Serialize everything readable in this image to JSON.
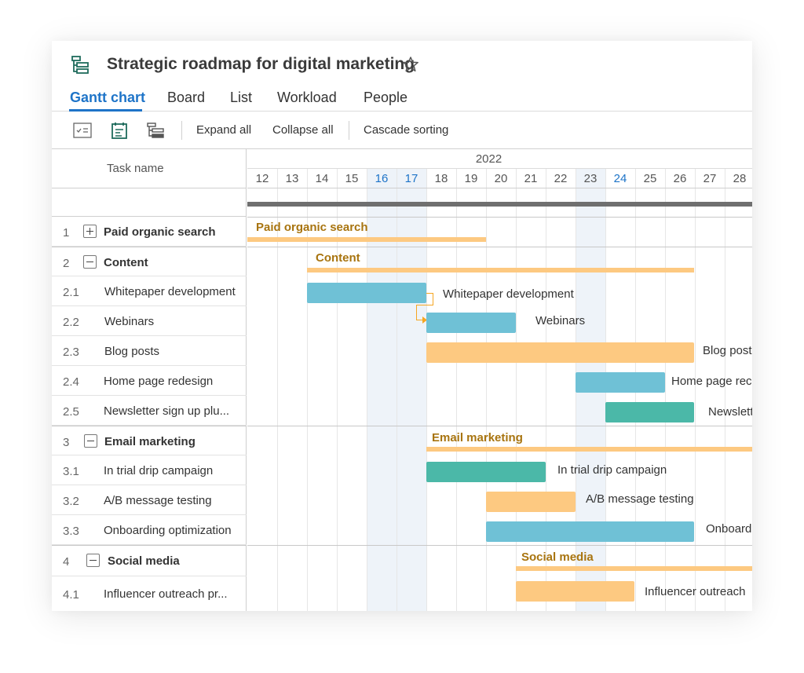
{
  "header": {
    "title": "Strategic roadmap for digital marketing",
    "app_icon": "gantt-app-icon",
    "favorite_icon": "star-outline-icon"
  },
  "tabs": [
    {
      "label": "Gantt chart",
      "active": true
    },
    {
      "label": "Board",
      "active": false
    },
    {
      "label": "List",
      "active": false
    },
    {
      "label": "Workload",
      "active": false
    },
    {
      "label": "People",
      "active": false
    }
  ],
  "toolbar": {
    "icons": [
      "task-list-checkbox-icon",
      "calendar-task-icon",
      "hierarchy-icon"
    ],
    "expand_all": "Expand all",
    "collapse_all": "Collapse all",
    "cascade_sorting": "Cascade sorting"
  },
  "grid": {
    "task_name_header": "Task name",
    "year": "2022",
    "days": [
      "12",
      "13",
      "14",
      "15",
      "16",
      "17",
      "18",
      "19",
      "20",
      "21",
      "22",
      "23",
      "24",
      "25",
      "26",
      "27",
      "28"
    ],
    "highlighted_days": [
      "16",
      "17",
      "24"
    ]
  },
  "tasks": [
    {
      "num": "1",
      "label": "Paid organic search",
      "group": true,
      "expanded": false
    },
    {
      "num": "2",
      "label": "Content",
      "group": true,
      "expanded": true
    },
    {
      "num": "2.1",
      "label": "Whitepaper development",
      "group": false
    },
    {
      "num": "2.2",
      "label": "Webinars",
      "group": false
    },
    {
      "num": "2.3",
      "label": "Blog posts",
      "group": false
    },
    {
      "num": "2.4",
      "label": "Home page redesign",
      "group": false
    },
    {
      "num": "2.5",
      "label": "Newsletter sign up plu...",
      "group": false
    },
    {
      "num": "3",
      "label": "Email marketing",
      "group": true,
      "expanded": true
    },
    {
      "num": "3.1",
      "label": "In trial drip campaign",
      "group": false
    },
    {
      "num": "3.2",
      "label": "A/B message testing",
      "group": false
    },
    {
      "num": "3.3",
      "label": "Onboarding optimization",
      "group": false
    },
    {
      "num": "4",
      "label": "Social media",
      "group": true,
      "expanded": true
    },
    {
      "num": "4.1",
      "label": "Influencer outreach pr...",
      "group": false
    }
  ],
  "bars": {
    "paid_organic_search": "Paid organic search",
    "content": "Content",
    "whitepaper": "Whitepaper development",
    "webinars": "Webinars",
    "blog_posts": "Blog post",
    "home_page": "Home page rec",
    "newsletter": "Newslett",
    "email_marketing": "Email marketing",
    "in_trial": "In trial drip campaign",
    "ab_testing": "A/B message testing",
    "onboarding": "Onboard",
    "social_media": "Social media",
    "influencer": "Influencer outreach"
  },
  "colors": {
    "accent": "#1e74c8",
    "blue_bar": "#6fc1d6",
    "teal_bar": "#4bb8a8",
    "orange_bar": "#fdc981",
    "group_label": "#a8740f"
  }
}
